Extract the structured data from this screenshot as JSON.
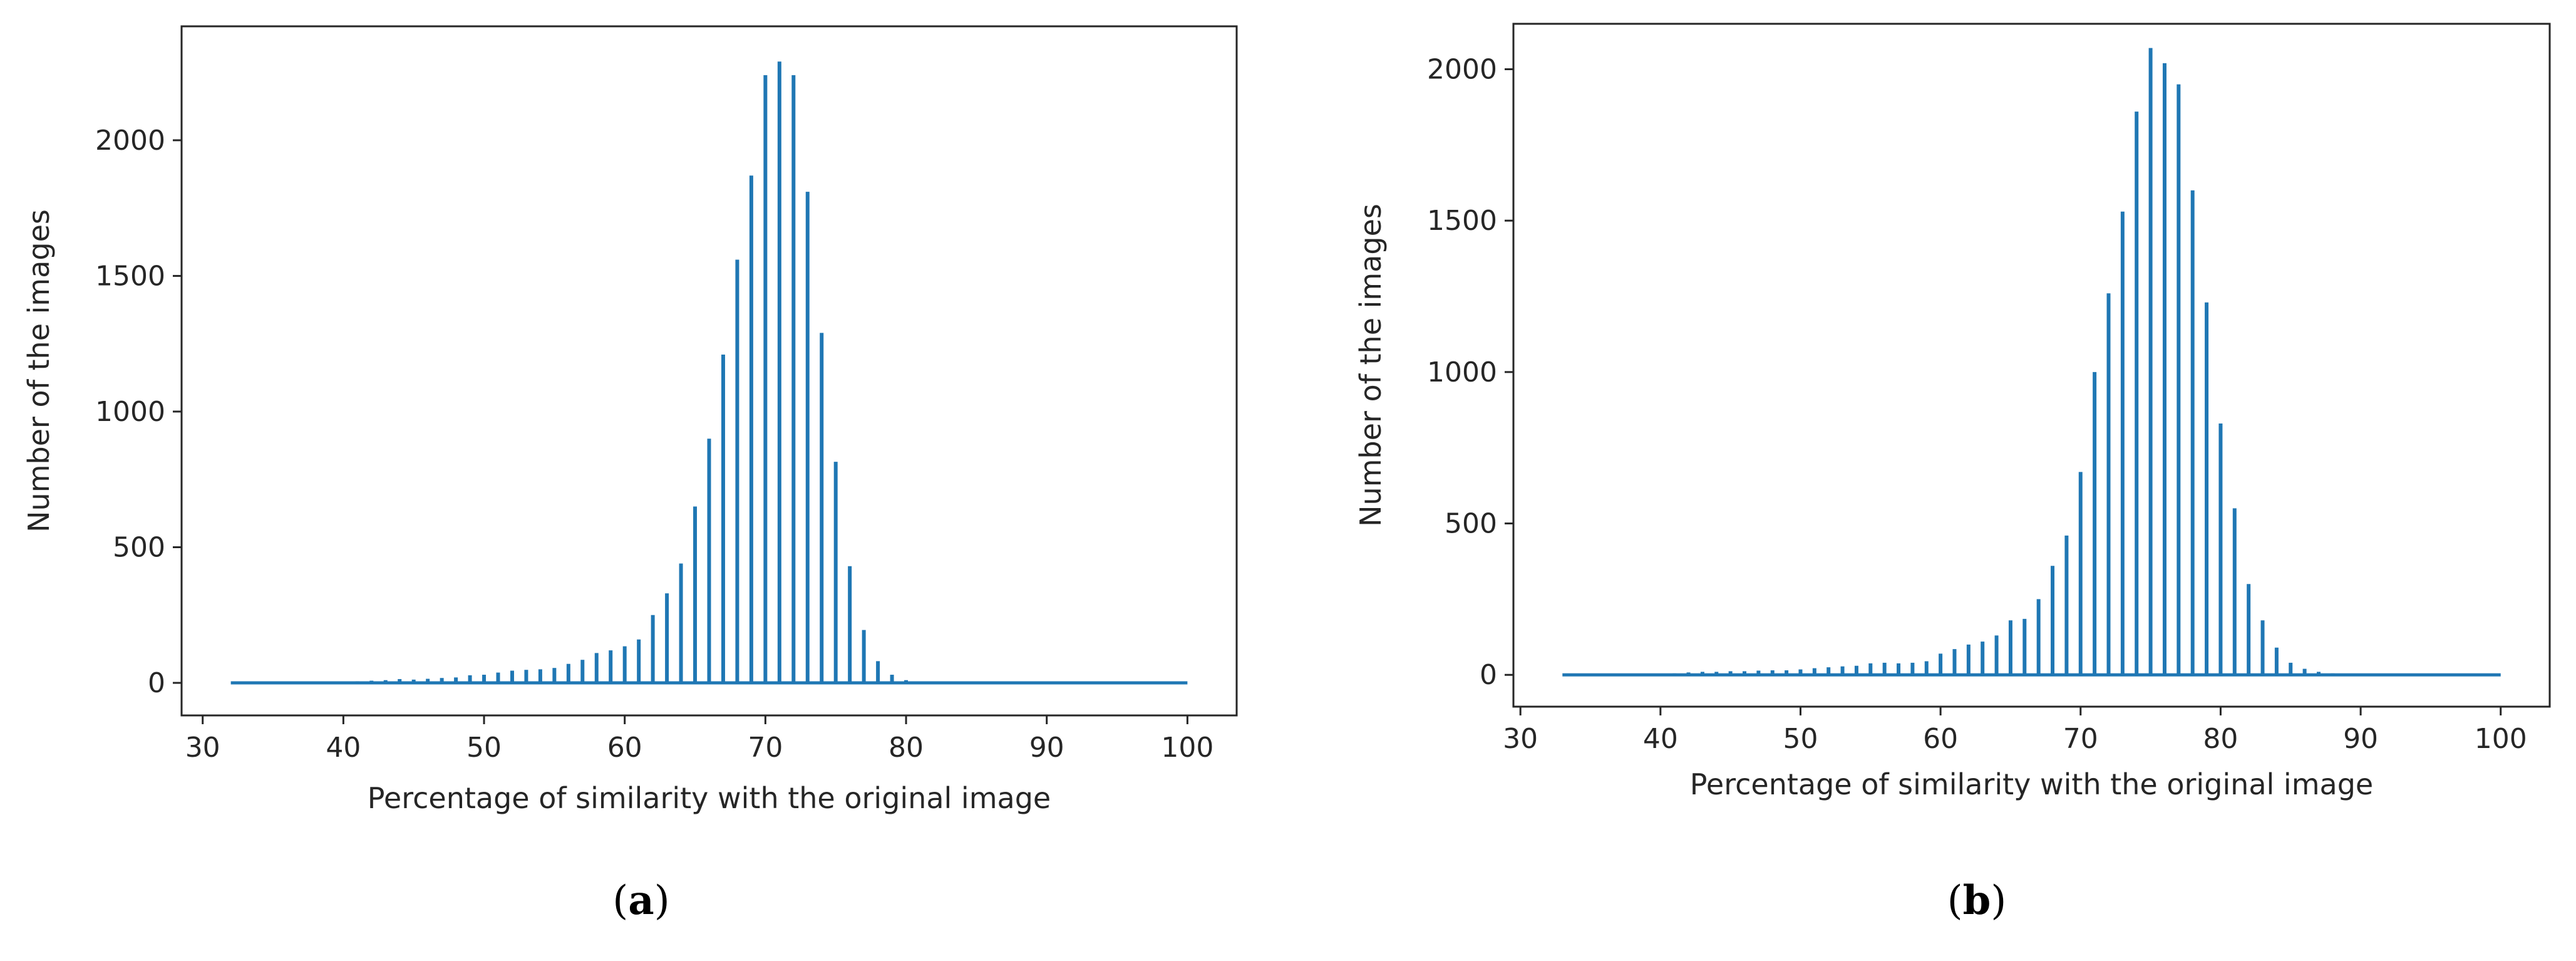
{
  "chart_data": [
    {
      "type": "bar",
      "id": "a",
      "caption_open": "(",
      "caption_letter": "a",
      "caption_close": ")",
      "xlabel": "Percentage of similarity with the original image",
      "ylabel": "Number of the images",
      "xlim": [
        28.5,
        103.5
      ],
      "ylim": [
        -120,
        2420
      ],
      "xticks": [
        30,
        40,
        50,
        60,
        70,
        80,
        90,
        100
      ],
      "yticks": [
        0,
        500,
        1000,
        1500,
        2000
      ],
      "baseline": [
        32,
        100
      ],
      "color": "#1f77b4",
      "x": [
        37,
        40,
        41,
        42,
        43,
        44,
        45,
        46,
        47,
        48,
        49,
        50,
        51,
        52,
        53,
        54,
        55,
        56,
        57,
        58,
        59,
        60,
        61,
        62,
        63,
        64,
        65,
        66,
        67,
        68,
        69,
        70,
        71,
        72,
        73,
        74,
        75,
        76,
        77,
        78,
        79,
        80,
        81
      ],
      "values": [
        3,
        5,
        6,
        8,
        10,
        14,
        12,
        15,
        18,
        20,
        28,
        30,
        38,
        45,
        48,
        50,
        55,
        70,
        85,
        110,
        120,
        135,
        160,
        250,
        330,
        440,
        650,
        900,
        1210,
        1560,
        1870,
        2240,
        2290,
        2240,
        1810,
        1290,
        815,
        430,
        195,
        80,
        30,
        10,
        5
      ]
    },
    {
      "type": "bar",
      "id": "b",
      "caption_open": "(",
      "caption_letter": "b",
      "caption_close": ")",
      "xlabel": "Percentage of similarity with the original image",
      "ylabel": "Number of the images",
      "xlim": [
        29.5,
        103.5
      ],
      "ylim": [
        -105,
        2150
      ],
      "xticks": [
        30,
        40,
        50,
        60,
        70,
        80,
        90,
        100
      ],
      "yticks": [
        0,
        500,
        1000,
        1500,
        2000
      ],
      "baseline": [
        33,
        100
      ],
      "color": "#1f77b4",
      "x": [
        41,
        42,
        43,
        44,
        45,
        46,
        47,
        48,
        49,
        50,
        51,
        52,
        53,
        54,
        55,
        56,
        57,
        58,
        59,
        60,
        61,
        62,
        63,
        64,
        65,
        66,
        67,
        68,
        69,
        70,
        71,
        72,
        73,
        74,
        75,
        76,
        77,
        78,
        79,
        80,
        81,
        82,
        83,
        84,
        85,
        86,
        87,
        88
      ],
      "values": [
        5,
        8,
        10,
        10,
        12,
        12,
        14,
        15,
        15,
        18,
        22,
        25,
        28,
        30,
        38,
        40,
        38,
        40,
        45,
        70,
        85,
        100,
        110,
        130,
        180,
        185,
        250,
        360,
        460,
        670,
        1000,
        1260,
        1530,
        1860,
        2070,
        2020,
        1950,
        1600,
        1230,
        830,
        550,
        300,
        180,
        90,
        40,
        20,
        10,
        5
      ]
    }
  ]
}
